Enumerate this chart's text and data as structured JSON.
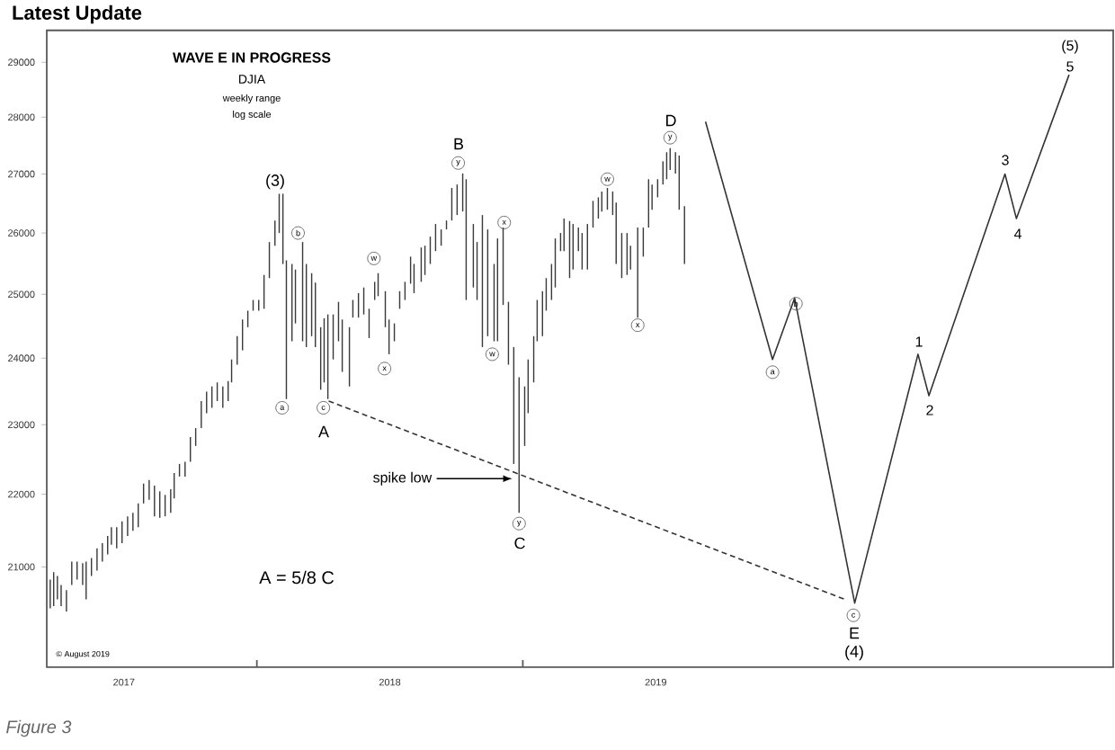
{
  "chart_data": {
    "type": "bar",
    "title": "Latest Update",
    "subtitle": "WAVE E IN PROGRESS",
    "annotations": [
      "DJIA",
      "weekly range",
      "log scale",
      "A = 5/8 C",
      "© August 2019",
      "Figure 3",
      "(3)",
      "A",
      "B",
      "C",
      "D",
      "E",
      "(4)",
      "1",
      "2",
      "3",
      "4",
      "5",
      "(5)",
      {
        "text": "a",
        "x": 2018.095,
        "y": 23250
      },
      {
        "text": "b",
        "x": 2018.155,
        "y": 26000
      },
      {
        "text": "c",
        "x": 2018.25,
        "y": 23250
      },
      {
        "text": "w",
        "x": 2018.44,
        "y": 25580
      },
      {
        "text": "x",
        "x": 2018.48,
        "y": 23840
      },
      {
        "text": "y",
        "x": 2018.757,
        "y": 27190
      },
      {
        "text": "w",
        "x": 2018.885,
        "y": 24060
      },
      {
        "text": "x",
        "x": 2018.93,
        "y": 26175
      },
      {
        "text": "y",
        "x": 2018.986,
        "y": 21590
      },
      {
        "text": "spike low",
        "x": 2018.96,
        "y": 22220
      },
      {
        "text": "w",
        "x": 2019.318,
        "y": 26910
      },
      {
        "text": "x",
        "x": 2019.432,
        "y": 24510
      },
      {
        "text": "y",
        "x": 2019.554,
        "y": 27635
      },
      {
        "text": "a",
        "x": 2019.939,
        "y": 23785
      },
      {
        "text": "b",
        "x": 2020.027,
        "y": 24850
      },
      {
        "text": "c",
        "x": 2020.243,
        "y": 20360
      }
    ],
    "xlim": [
      2017.21,
      2021.22
    ],
    "xticks": [
      {
        "value": 2017.5,
        "label": "2017"
      },
      {
        "value": 2018,
        "label": null
      },
      {
        "value": 2018.5,
        "label": "2018"
      },
      {
        "value": 2019,
        "label": null
      },
      {
        "value": 2019.5,
        "label": "2019"
      }
    ],
    "ylim": [
      19700,
      29600
    ],
    "yticks": [
      21000,
      22000,
      23000,
      24000,
      25000,
      26000,
      27000,
      28000,
      29000
    ],
    "log": "y",
    "series": [
      {
        "color": "#3a3a3a",
        "x": [
          2017.223,
          2017.236,
          2017.25,
          2017.264,
          2017.284,
          2017.304,
          2017.324,
          2017.345,
          2017.358,
          2017.378,
          2017.399,
          2017.419,
          2017.439,
          2017.453,
          2017.473,
          2017.493,
          2017.514,
          2017.534,
          2017.554,
          2017.574,
          2017.595,
          2017.615,
          2017.635,
          2017.655,
          2017.676,
          2017.689,
          2017.709,
          2017.73,
          2017.75,
          2017.77,
          2017.791,
          2017.811,
          2017.831,
          2017.851,
          2017.872,
          2017.892,
          2017.905,
          2017.926,
          2017.946,
          2017.966,
          2017.986,
          2018.007,
          2018.027,
          2018.047,
          2018.068,
          2018.084,
          2018.098,
          2018.111,
          2018.132,
          2018.145,
          2018.172,
          2018.186,
          2018.206,
          2018.22,
          2018.24,
          2018.253,
          2018.267,
          2018.287,
          2018.307,
          2018.321,
          2018.348,
          2018.361,
          2018.382,
          2018.402,
          2018.422,
          2018.443,
          2018.456,
          2018.483,
          2018.497,
          2018.517,
          2018.537,
          2018.557,
          2018.578,
          2018.591,
          2018.618,
          2018.632,
          2018.652,
          2018.672,
          2018.693,
          2018.713,
          2018.733,
          2018.753,
          2018.774,
          2018.787,
          2018.814,
          2018.828,
          2018.848,
          2018.868,
          2018.892,
          2018.905,
          2018.926,
          2018.946,
          2018.966,
          2018.986,
          2019.007,
          2019.02,
          2019.041,
          2019.054,
          2019.074,
          2019.088,
          2019.108,
          2019.122,
          2019.142,
          2019.155,
          2019.176,
          2019.189,
          2019.209,
          2019.223,
          2019.243,
          2019.264,
          2019.284,
          2019.297,
          2019.318,
          2019.338,
          2019.351,
          2019.372,
          2019.392,
          2019.405,
          2019.432,
          2019.453,
          2019.473,
          2019.486,
          2019.507,
          2019.527,
          2019.541,
          2019.554,
          2019.574,
          2019.588,
          2019.608
        ],
        "base": [
          20450,
          20480,
          20570,
          20480,
          20410,
          20760,
          20830,
          20760,
          20570,
          20880,
          20950,
          21070,
          21170,
          21300,
          21250,
          21320,
          21420,
          21490,
          21540,
          21870,
          21920,
          21690,
          21670,
          21690,
          21740,
          21940,
          22250,
          22250,
          22460,
          22690,
          22950,
          23170,
          23250,
          23350,
          23250,
          23350,
          23630,
          23900,
          24120,
          24480,
          24740,
          24740,
          24770,
          25260,
          25790,
          26000,
          25490,
          23380,
          24260,
          24540,
          24260,
          24170,
          24340,
          24170,
          23520,
          23630,
          23380,
          23980,
          24260,
          23790,
          23570,
          24630,
          24630,
          24680,
          24310,
          24910,
          24970,
          24480,
          24060,
          24260,
          24770,
          24910,
          25170,
          25020,
          25200,
          25310,
          25490,
          25700,
          25790,
          26060,
          26210,
          26300,
          26360,
          24910,
          25110,
          24910,
          24170,
          24340,
          24260,
          24260,
          24830,
          23900,
          22430,
          21740,
          22690,
          23170,
          23630,
          24260,
          24340,
          24740,
          24910,
          25110,
          25700,
          25700,
          25260,
          25400,
          25700,
          25400,
          25400,
          26090,
          26240,
          26360,
          26390,
          26300,
          25490,
          25260,
          25310,
          25400,
          24630,
          25610,
          26090,
          26390,
          26600,
          26820,
          26910,
          27070,
          27010,
          26390,
          25490
        ],
        "values": [
          380,
          450,
          310,
          280,
          280,
          310,
          240,
          290,
          500,
          240,
          300,
          250,
          250,
          240,
          290,
          300,
          270,
          250,
          330,
          280,
          280,
          430,
          370,
          300,
          330,
          360,
          180,
          210,
          360,
          260,
          400,
          320,
          320,
          280,
          320,
          300,
          350,
          440,
          480,
          260,
          170,
          170,
          540,
          590,
          420,
          660,
          1170,
          2170,
          1230,
          860,
          1590,
          1320,
          1000,
          1020,
          960,
          990,
          1300,
          700,
          620,
          810,
          910,
          280,
          390,
          430,
          460,
          290,
          370,
          570,
          540,
          280,
          280,
          290,
          440,
          470,
          560,
          480,
          450,
          450,
          270,
          150,
          550,
          520,
          650,
          2000,
          1040,
          940,
          2130,
          1720,
          1230,
          1650,
          1260,
          980,
          1740,
          1970,
          880,
          810,
          710,
          650,
          710,
          520,
          580,
          800,
          300,
          540,
          940,
          750,
          390,
          600,
          750,
          450,
          360,
          340,
          370,
          400,
          1020,
          740,
          690,
          390,
          1460,
          480,
          820,
          430,
          310,
          400,
          470,
          380,
          370,
          930,
          960
        ]
      },
      {
        "type": "line",
        "color": "#333333",
        "line_style": "solid",
        "x": [
          2019.687,
          2019.939,
          2020.022,
          2020.248,
          2020.486,
          2020.527,
          2020.813,
          2020.856,
          2021.054
        ],
        "values": [
          27920,
          23980,
          24940,
          20520,
          24060,
          23430,
          27000,
          26240,
          28770
        ]
      },
      {
        "type": "line",
        "color": "#333333",
        "line_style": "dashed",
        "x": [
          2018.27,
          2020.21
        ],
        "values": [
          23350,
          20570
        ]
      }
    ]
  }
}
